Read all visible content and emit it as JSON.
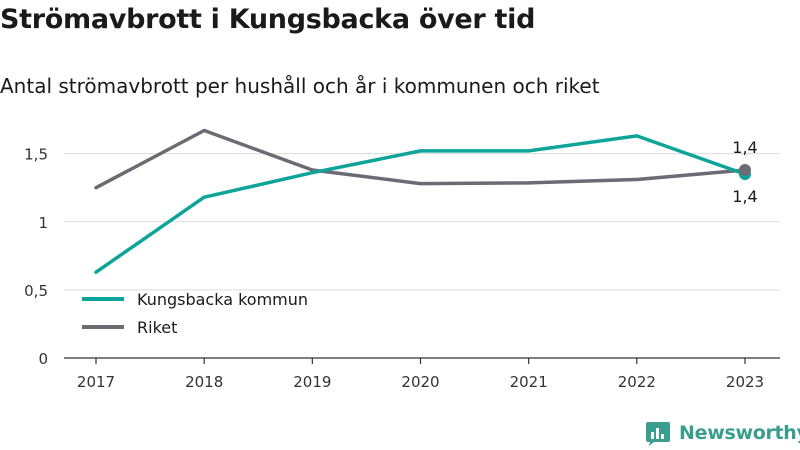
{
  "title": "Strömavbrott i Kungsbacka över tid",
  "subtitle": "Antal strömavbrott per hushåll och år i kommunen och riket",
  "brand": "Newsworthy",
  "chart_data": {
    "type": "line",
    "categories": [
      "2017",
      "2018",
      "2019",
      "2020",
      "2021",
      "2022",
      "2023"
    ],
    "series": [
      {
        "name": "Kungsbacka kommun",
        "color": "#0ea49a",
        "values": [
          0.63,
          1.18,
          1.36,
          1.52,
          1.52,
          1.63,
          1.35
        ]
      },
      {
        "name": "Riket",
        "color": "#6b6b73",
        "values": [
          1.25,
          1.67,
          1.38,
          1.28,
          1.285,
          1.31,
          1.38
        ]
      }
    ],
    "ylim": [
      0,
      1.6
    ],
    "yticks": [
      {
        "value": 0,
        "label": "0"
      },
      {
        "value": 0.5,
        "label": "0,5"
      },
      {
        "value": 1,
        "label": "1"
      },
      {
        "value": 1.5,
        "label": "1,5"
      }
    ],
    "annotations": [
      {
        "series": "Riket",
        "category": "2023",
        "label": "1,4",
        "position": "above"
      },
      {
        "series": "Kungsbacka kommun",
        "category": "2023",
        "label": "1,4",
        "position": "below"
      }
    ],
    "legend_position": "bottom-left",
    "grid": true
  }
}
